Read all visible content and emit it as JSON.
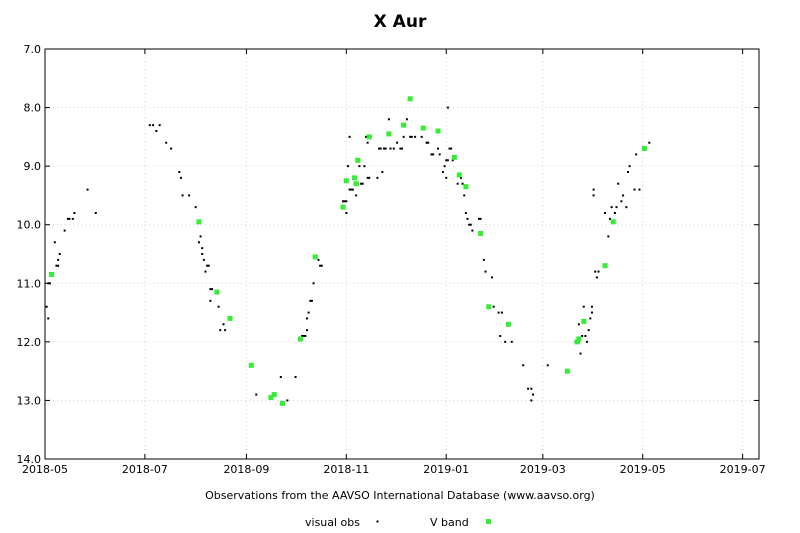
{
  "chart_data": {
    "type": "scatter",
    "title": "X Aur",
    "xlabel": "Observations from the AAVSO International Database (www.aavso.org)",
    "ylabel": "",
    "y_inverted": true,
    "ylim": [
      7.0,
      14.0
    ],
    "xlim": [
      "2018-05-01",
      "2019-07-11"
    ],
    "grid": true,
    "legend_position": "bottom-center",
    "x_ticks": [
      "2018-05",
      "2018-07",
      "2018-09",
      "2018-11",
      "2019-01",
      "2019-03",
      "2019-05",
      "2019-07"
    ],
    "y_ticks": [
      "7.0",
      "8.0",
      "9.0",
      "10.0",
      "11.0",
      "12.0",
      "13.0",
      "14.0"
    ],
    "colors": {
      "visual": "#000000",
      "vband": "#33ee33",
      "grid": "#c8c8c8"
    },
    "series": [
      {
        "name": "visual obs",
        "marker": "dot",
        "points": [
          [
            "2018-05-02",
            11.4
          ],
          [
            "2018-05-03",
            11.6
          ],
          [
            "2018-05-03",
            11.0
          ],
          [
            "2018-05-04",
            11.0
          ],
          [
            "2018-05-07",
            10.3
          ],
          [
            "2018-05-08",
            10.7
          ],
          [
            "2018-05-09",
            10.7
          ],
          [
            "2018-05-09",
            10.6
          ],
          [
            "2018-05-10",
            10.5
          ],
          [
            "2018-05-13",
            10.1
          ],
          [
            "2018-05-15",
            9.9
          ],
          [
            "2018-05-16",
            9.9
          ],
          [
            "2018-05-18",
            9.9
          ],
          [
            "2018-05-19",
            9.8
          ],
          [
            "2018-05-27",
            9.4
          ],
          [
            "2018-06-01",
            9.8
          ],
          [
            "2018-07-04",
            8.3
          ],
          [
            "2018-07-06",
            8.3
          ],
          [
            "2018-07-08",
            8.4
          ],
          [
            "2018-07-10",
            8.3
          ],
          [
            "2018-07-14",
            8.6
          ],
          [
            "2018-07-17",
            8.7
          ],
          [
            "2018-07-22",
            9.1
          ],
          [
            "2018-07-23",
            9.2
          ],
          [
            "2018-07-24",
            9.5
          ],
          [
            "2018-07-28",
            9.5
          ],
          [
            "2018-08-01",
            9.7
          ],
          [
            "2018-08-03",
            10.3
          ],
          [
            "2018-08-04",
            10.2
          ],
          [
            "2018-08-05",
            10.4
          ],
          [
            "2018-08-05",
            10.5
          ],
          [
            "2018-08-06",
            10.6
          ],
          [
            "2018-08-07",
            10.8
          ],
          [
            "2018-08-08",
            10.7
          ],
          [
            "2018-08-09",
            10.7
          ],
          [
            "2018-08-10",
            11.1
          ],
          [
            "2018-08-10",
            11.3
          ],
          [
            "2018-08-11",
            11.1
          ],
          [
            "2018-08-15",
            11.4
          ],
          [
            "2018-08-16",
            11.8
          ],
          [
            "2018-08-18",
            11.7
          ],
          [
            "2018-08-19",
            11.8
          ],
          [
            "2018-09-07",
            12.9
          ],
          [
            "2018-09-22",
            12.6
          ],
          [
            "2018-09-26",
            13.0
          ],
          [
            "2018-10-01",
            12.6
          ],
          [
            "2018-10-05",
            11.9
          ],
          [
            "2018-10-06",
            11.9
          ],
          [
            "2018-10-07",
            11.9
          ],
          [
            "2018-10-08",
            11.8
          ],
          [
            "2018-10-08",
            11.6
          ],
          [
            "2018-10-09",
            11.5
          ],
          [
            "2018-10-10",
            11.3
          ],
          [
            "2018-10-11",
            11.3
          ],
          [
            "2018-10-12",
            11.0
          ],
          [
            "2018-10-15",
            10.6
          ],
          [
            "2018-10-16",
            10.7
          ],
          [
            "2018-10-17",
            10.7
          ],
          [
            "2018-10-30",
            9.6
          ],
          [
            "2018-10-31",
            9.6
          ],
          [
            "2018-11-01",
            9.8
          ],
          [
            "2018-11-01",
            9.6
          ],
          [
            "2018-11-02",
            9.0
          ],
          [
            "2018-11-03",
            8.5
          ],
          [
            "2018-11-03",
            9.4
          ],
          [
            "2018-11-04",
            9.4
          ],
          [
            "2018-11-05",
            9.4
          ],
          [
            "2018-11-06",
            9.3
          ],
          [
            "2018-11-07",
            9.5
          ],
          [
            "2018-11-08",
            9.3
          ],
          [
            "2018-11-09",
            9.0
          ],
          [
            "2018-11-10",
            9.3
          ],
          [
            "2018-11-11",
            9.3
          ],
          [
            "2018-11-12",
            9.0
          ],
          [
            "2018-11-13",
            8.5
          ],
          [
            "2018-11-14",
            8.6
          ],
          [
            "2018-11-14",
            9.2
          ],
          [
            "2018-11-15",
            9.2
          ],
          [
            "2018-11-20",
            9.2
          ],
          [
            "2018-11-21",
            8.7
          ],
          [
            "2018-11-22",
            8.7
          ],
          [
            "2018-11-23",
            9.1
          ],
          [
            "2018-11-24",
            8.7
          ],
          [
            "2018-11-25",
            8.7
          ],
          [
            "2018-11-27",
            8.2
          ],
          [
            "2018-11-28",
            8.7
          ],
          [
            "2018-11-30",
            8.7
          ],
          [
            "2018-12-02",
            8.6
          ],
          [
            "2018-12-04",
            8.7
          ],
          [
            "2018-12-05",
            8.7
          ],
          [
            "2018-12-06",
            8.5
          ],
          [
            "2018-12-08",
            8.2
          ],
          [
            "2018-12-10",
            8.5
          ],
          [
            "2018-12-11",
            8.5
          ],
          [
            "2018-12-13",
            8.5
          ],
          [
            "2018-12-17",
            8.5
          ],
          [
            "2018-12-20",
            8.6
          ],
          [
            "2018-12-21",
            8.6
          ],
          [
            "2018-12-23",
            8.8
          ],
          [
            "2018-12-24",
            8.8
          ],
          [
            "2018-12-27",
            8.7
          ],
          [
            "2018-12-28",
            8.8
          ],
          [
            "2018-12-30",
            9.1
          ],
          [
            "2018-12-31",
            9.0
          ],
          [
            "2019-01-01",
            8.9
          ],
          [
            "2019-01-01",
            9.2
          ],
          [
            "2019-01-02",
            8.9
          ],
          [
            "2019-01-02",
            8.0
          ],
          [
            "2019-01-03",
            8.7
          ],
          [
            "2019-01-04",
            8.7
          ],
          [
            "2019-01-05",
            8.9
          ],
          [
            "2019-01-08",
            9.3
          ],
          [
            "2019-01-10",
            9.2
          ],
          [
            "2019-01-11",
            9.3
          ],
          [
            "2019-01-12",
            9.5
          ],
          [
            "2019-01-13",
            9.8
          ],
          [
            "2019-01-14",
            9.9
          ],
          [
            "2019-01-15",
            10.0
          ],
          [
            "2019-01-16",
            10.0
          ],
          [
            "2019-01-17",
            10.1
          ],
          [
            "2019-01-21",
            9.9
          ],
          [
            "2019-01-22",
            9.9
          ],
          [
            "2019-01-24",
            10.6
          ],
          [
            "2019-01-25",
            10.8
          ],
          [
            "2019-01-29",
            10.9
          ],
          [
            "2019-01-30",
            11.4
          ],
          [
            "2019-02-02",
            11.5
          ],
          [
            "2019-02-03",
            11.9
          ],
          [
            "2019-02-04",
            11.5
          ],
          [
            "2019-02-06",
            12.0
          ],
          [
            "2019-02-10",
            12.0
          ],
          [
            "2019-02-17",
            12.4
          ],
          [
            "2019-02-20",
            12.8
          ],
          [
            "2019-02-22",
            12.8
          ],
          [
            "2019-02-22",
            13.0
          ],
          [
            "2019-02-23",
            12.9
          ],
          [
            "2019-03-04",
            12.4
          ],
          [
            "2019-03-21",
            12.0
          ],
          [
            "2019-03-23",
            12.0
          ],
          [
            "2019-03-23",
            11.7
          ],
          [
            "2019-03-24",
            12.2
          ],
          [
            "2019-03-25",
            11.9
          ],
          [
            "2019-03-26",
            11.4
          ],
          [
            "2019-03-27",
            11.9
          ],
          [
            "2019-03-28",
            12.0
          ],
          [
            "2019-03-29",
            11.8
          ],
          [
            "2019-03-30",
            11.6
          ],
          [
            "2019-03-31",
            11.4
          ],
          [
            "2019-03-31",
            11.5
          ],
          [
            "2019-04-01",
            9.4
          ],
          [
            "2019-04-01",
            9.5
          ],
          [
            "2019-04-02",
            10.8
          ],
          [
            "2019-04-03",
            10.9
          ],
          [
            "2019-04-04",
            10.8
          ],
          [
            "2019-04-08",
            9.8
          ],
          [
            "2019-04-10",
            10.2
          ],
          [
            "2019-04-11",
            9.9
          ],
          [
            "2019-04-12",
            9.7
          ],
          [
            "2019-04-14",
            9.8
          ],
          [
            "2019-04-15",
            9.7
          ],
          [
            "2019-04-16",
            9.3
          ],
          [
            "2019-04-18",
            9.6
          ],
          [
            "2019-04-19",
            9.5
          ],
          [
            "2019-04-21",
            9.7
          ],
          [
            "2019-04-22",
            9.1
          ],
          [
            "2019-04-23",
            9.0
          ],
          [
            "2019-04-26",
            9.4
          ],
          [
            "2019-04-27",
            8.8
          ],
          [
            "2019-04-29",
            9.4
          ],
          [
            "2019-05-05",
            8.6
          ]
        ]
      },
      {
        "name": "V band",
        "marker": "square",
        "points": [
          [
            "2018-05-05",
            10.85
          ],
          [
            "2018-08-03",
            9.95
          ],
          [
            "2018-08-14",
            11.15
          ],
          [
            "2018-08-22",
            11.6
          ],
          [
            "2018-09-04",
            12.4
          ],
          [
            "2018-09-16",
            12.95
          ],
          [
            "2018-09-18",
            12.9
          ],
          [
            "2018-09-23",
            13.05
          ],
          [
            "2018-10-04",
            11.95
          ],
          [
            "2018-10-13",
            10.55
          ],
          [
            "2018-10-30",
            9.7
          ],
          [
            "2018-11-01",
            9.25
          ],
          [
            "2018-11-06",
            9.2
          ],
          [
            "2018-11-07",
            9.3
          ],
          [
            "2018-11-08",
            8.9
          ],
          [
            "2018-11-15",
            8.5
          ],
          [
            "2018-11-27",
            8.45
          ],
          [
            "2018-12-06",
            8.3
          ],
          [
            "2018-12-10",
            7.85
          ],
          [
            "2018-12-18",
            8.35
          ],
          [
            "2018-12-27",
            8.4
          ],
          [
            "2019-01-06",
            8.85
          ],
          [
            "2019-01-09",
            9.15
          ],
          [
            "2019-01-13",
            9.35
          ],
          [
            "2019-01-22",
            10.15
          ],
          [
            "2019-01-27",
            11.4
          ],
          [
            "2019-02-08",
            11.7
          ],
          [
            "2019-03-16",
            12.5
          ],
          [
            "2019-03-22",
            12.0
          ],
          [
            "2019-03-23",
            11.95
          ],
          [
            "2019-03-26",
            11.65
          ],
          [
            "2019-04-08",
            10.7
          ],
          [
            "2019-04-13",
            9.95
          ],
          [
            "2019-05-02",
            8.7
          ]
        ]
      }
    ]
  }
}
